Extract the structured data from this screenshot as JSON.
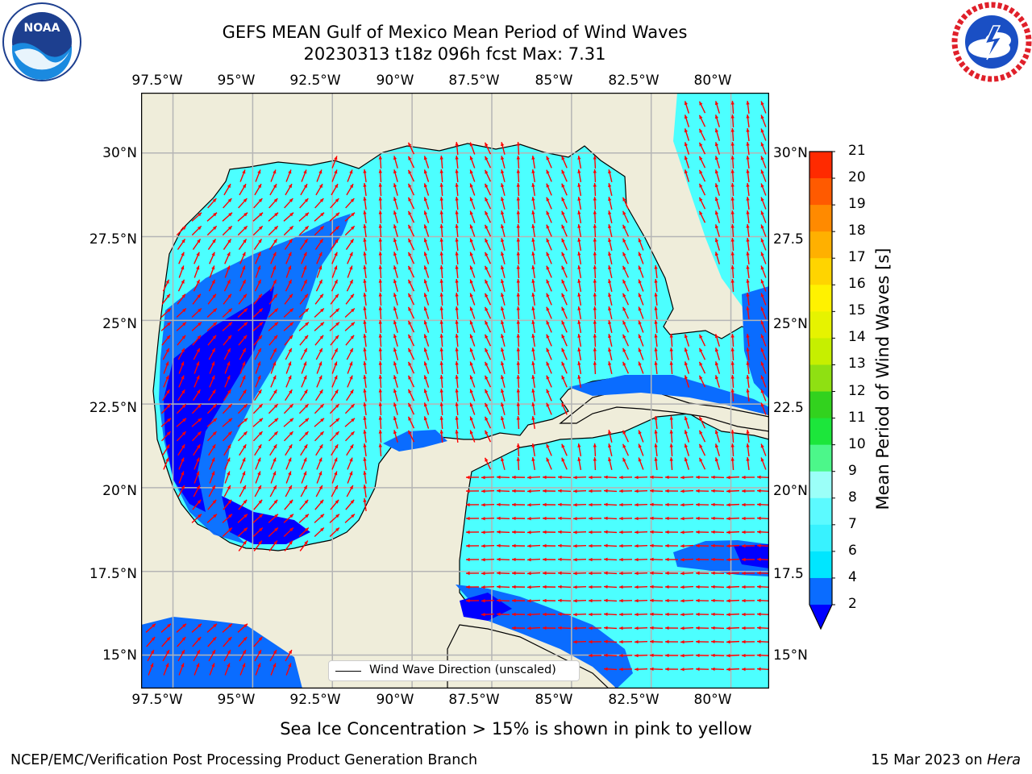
{
  "title_line1": "GEFS MEAN Gulf of Mexico Mean Period of Wind Waves",
  "title_line2": "20230313 t18z 096h fcst   Max: 7.31",
  "logo_left_text": "NOAA",
  "logo_left_ring_text": "NATIONAL OCEANIC AND ATMOSPHERIC ADMINISTRATION · U.S. DEPARTMENT OF COMMERCE",
  "logo_right_ring_text": "NATIONAL WEATHER SERVICE",
  "lon_ticks": [
    "97.5°W",
    "95°W",
    "92.5°W",
    "90°W",
    "87.5°W",
    "85°W",
    "82.5°W",
    "80°W"
  ],
  "lat_ticks_left": [
    "30°N",
    "27.5°N",
    "25°N",
    "22.5°N",
    "20°N",
    "17.5°N",
    "15°N"
  ],
  "lat_ticks_right": [
    "30°N",
    "27.5",
    "25°N",
    "22.5",
    "20°N",
    "17.5",
    "15°N"
  ],
  "legend_label": "Wind Wave Direction (unscaled)",
  "colorbar": {
    "label": "Mean Period of Wind Waves [s]",
    "ticks": [
      "2",
      "4",
      "6",
      "7",
      "8",
      "9",
      "10",
      "11",
      "12",
      "13",
      "14",
      "15",
      "16",
      "17",
      "18",
      "19",
      "20",
      "21"
    ],
    "colors": [
      "#0a6cff",
      "#00e6ff",
      "#38f2ff",
      "#5cfaff",
      "#9bfff8",
      "#4cf78a",
      "#1ce63b",
      "#32d21e",
      "#8fe012",
      "#c6ef00",
      "#e6f300",
      "#fff200",
      "#ffd400",
      "#ffb000",
      "#ff8a00",
      "#ff5a00",
      "#ff2a00"
    ],
    "extend_color": "#0000ff"
  },
  "sea_ice_note": "Sea Ice Concentration > 15% is shown in pink to yellow",
  "footer_left": "NCEP/EMC/Verification Post Processing Product Generation Branch",
  "footer_right_date": "15 Mar 2023 on ",
  "footer_right_machine": "Hera",
  "colors": {
    "land": "#efedda",
    "water_light": "#4cffff",
    "water_mid": "#00efff",
    "water_blue": "#0a6cff",
    "water_deep": "#0000ff",
    "arrow": "#ff0000",
    "grid": "#b5b5b5"
  },
  "map_extent": {
    "lon_min": -98.5,
    "lon_max": -78.8,
    "lat_min": 14.0,
    "lat_max": 31.8
  }
}
